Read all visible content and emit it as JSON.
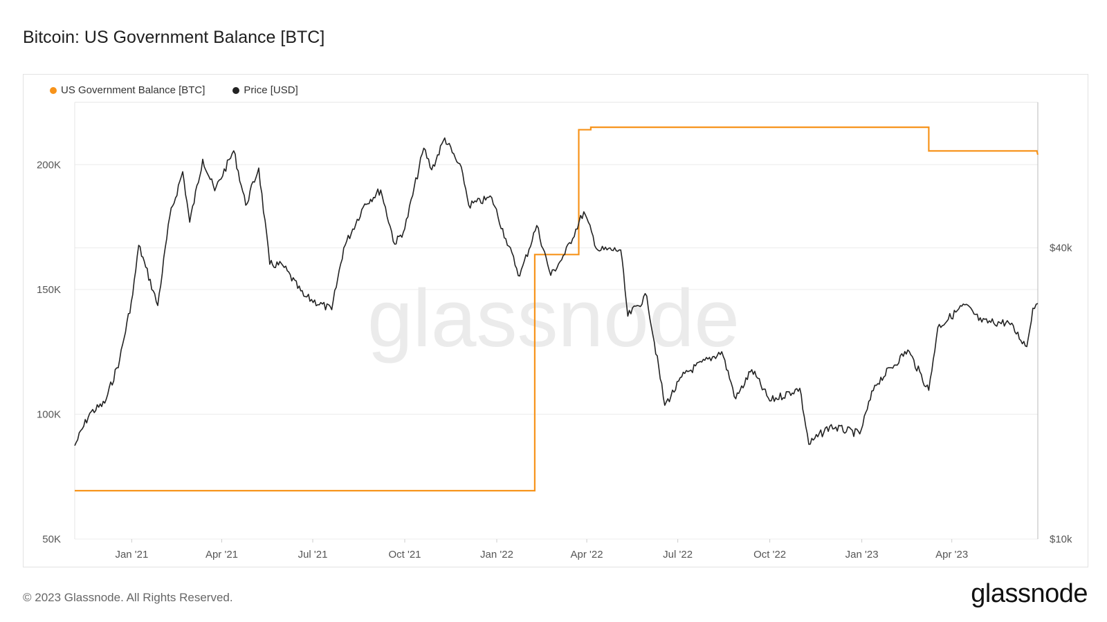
{
  "title": "Bitcoin: US Government Balance [BTC]",
  "footer": "© 2023 Glassnode. All Rights Reserved.",
  "brand": "glassnode",
  "watermark": "glassnode",
  "colors": {
    "balance": "#f7931a",
    "price": "#222222",
    "grid": "#ececec",
    "axis_text": "#555555"
  },
  "chart_data": {
    "type": "line",
    "title": "Bitcoin: US Government Balance [BTC]",
    "legend_position": "top-left",
    "grid": true,
    "x_range": [
      "2020-11-05",
      "2023-06-26"
    ],
    "x_ticks": [
      {
        "date": "2021-01-01",
        "label": "Jan '21"
      },
      {
        "date": "2021-04-01",
        "label": "Apr '21"
      },
      {
        "date": "2021-07-01",
        "label": "Jul '21"
      },
      {
        "date": "2021-10-01",
        "label": "Oct '21"
      },
      {
        "date": "2022-01-01",
        "label": "Jan '22"
      },
      {
        "date": "2022-04-01",
        "label": "Apr '22"
      },
      {
        "date": "2022-07-01",
        "label": "Jul '22"
      },
      {
        "date": "2022-10-01",
        "label": "Oct '22"
      },
      {
        "date": "2023-01-01",
        "label": "Jan '23"
      },
      {
        "date": "2023-04-01",
        "label": "Apr '23"
      }
    ],
    "y_left": {
      "label": "",
      "ylim": [
        50000,
        225000
      ],
      "ticks": [
        {
          "value": 50000,
          "label": "50K"
        },
        {
          "value": 100000,
          "label": "100K"
        },
        {
          "value": 150000,
          "label": "150K"
        },
        {
          "value": 200000,
          "label": "200K"
        }
      ]
    },
    "y_right": {
      "label": "",
      "scale": "log",
      "ylim": [
        10000,
        80000
      ],
      "ticks": [
        {
          "value": 10000,
          "label": "$10k"
        },
        {
          "value": 40000,
          "label": "$40k"
        }
      ]
    },
    "series": [
      {
        "name": "US Government Balance [BTC]",
        "axis": "left",
        "step": true,
        "points": [
          [
            "2020-11-05",
            69370
          ],
          [
            "2022-02-08",
            69370
          ],
          [
            "2022-02-08",
            164000
          ],
          [
            "2022-03-24",
            164000
          ],
          [
            "2022-03-24",
            214000
          ],
          [
            "2022-04-05",
            214000
          ],
          [
            "2022-04-05",
            215000
          ],
          [
            "2023-03-09",
            215000
          ],
          [
            "2023-03-09",
            205500
          ],
          [
            "2023-06-25",
            205500
          ],
          [
            "2023-06-26",
            204000
          ]
        ]
      },
      {
        "name": "Price [USD]",
        "axis": "right",
        "points": [
          [
            "2020-11-05",
            15600
          ],
          [
            "2020-11-20",
            18200
          ],
          [
            "2020-12-05",
            19100
          ],
          [
            "2020-12-20",
            23500
          ],
          [
            "2021-01-02",
            32000
          ],
          [
            "2021-01-08",
            40500
          ],
          [
            "2021-01-15",
            36500
          ],
          [
            "2021-01-27",
            30400
          ],
          [
            "2021-02-08",
            46400
          ],
          [
            "2021-02-21",
            57500
          ],
          [
            "2021-02-28",
            45200
          ],
          [
            "2021-03-13",
            61000
          ],
          [
            "2021-03-25",
            52500
          ],
          [
            "2021-04-13",
            63500
          ],
          [
            "2021-04-25",
            49000
          ],
          [
            "2021-05-08",
            58500
          ],
          [
            "2021-05-19",
            37000
          ],
          [
            "2021-06-01",
            36800
          ],
          [
            "2021-06-22",
            31800
          ],
          [
            "2021-07-20",
            29800
          ],
          [
            "2021-08-01",
            40000
          ],
          [
            "2021-08-22",
            49300
          ],
          [
            "2021-09-07",
            52700
          ],
          [
            "2021-09-21",
            40700
          ],
          [
            "2021-10-01",
            43800
          ],
          [
            "2021-10-20",
            64300
          ],
          [
            "2021-10-28",
            58000
          ],
          [
            "2021-11-10",
            67500
          ],
          [
            "2021-11-28",
            57000
          ],
          [
            "2021-12-04",
            49000
          ],
          [
            "2021-12-27",
            50800
          ],
          [
            "2022-01-10",
            41800
          ],
          [
            "2022-01-24",
            35000
          ],
          [
            "2022-02-10",
            44500
          ],
          [
            "2022-02-24",
            35100
          ],
          [
            "2022-03-10",
            38800
          ],
          [
            "2022-03-29",
            47500
          ],
          [
            "2022-04-12",
            39600
          ],
          [
            "2022-05-05",
            39600
          ],
          [
            "2022-05-12",
            28900
          ],
          [
            "2022-05-31",
            31800
          ],
          [
            "2022-06-18",
            18900
          ],
          [
            "2022-07-08",
            22000
          ],
          [
            "2022-08-14",
            24400
          ],
          [
            "2022-08-28",
            19500
          ],
          [
            "2022-09-13",
            22400
          ],
          [
            "2022-10-01",
            19300
          ],
          [
            "2022-10-31",
            20500
          ],
          [
            "2022-11-09",
            15700
          ],
          [
            "2022-11-30",
            17100
          ],
          [
            "2022-12-30",
            16500
          ],
          [
            "2023-01-14",
            20800
          ],
          [
            "2023-02-16",
            24600
          ],
          [
            "2023-03-09",
            20300
          ],
          [
            "2023-03-18",
            27400
          ],
          [
            "2023-04-14",
            30500
          ],
          [
            "2023-05-01",
            28100
          ],
          [
            "2023-05-28",
            28000
          ],
          [
            "2023-06-15",
            25000
          ],
          [
            "2023-06-21",
            30000
          ],
          [
            "2023-06-26",
            30700
          ]
        ]
      }
    ]
  }
}
